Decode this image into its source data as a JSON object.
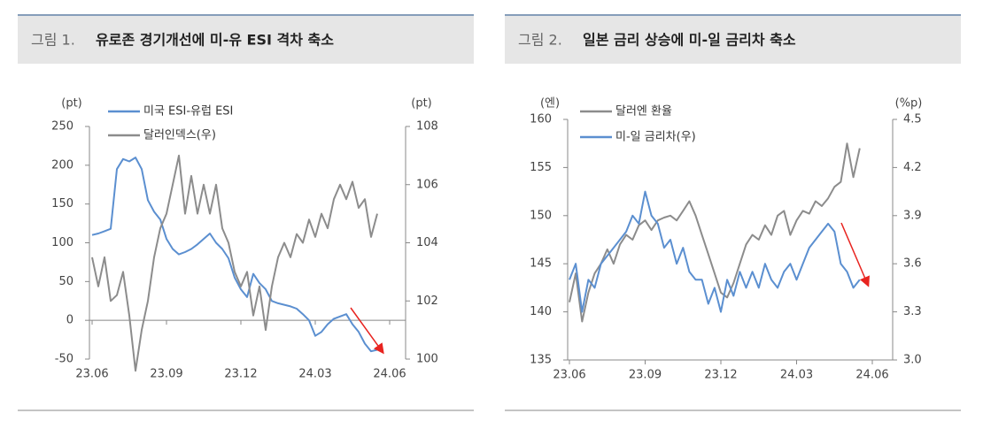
{
  "chart_data": [
    {
      "type": "line",
      "figure_label": "그림 1.",
      "title": "유로존 경기개선에 미-유 ESI 격차 축소",
      "y_unit": "(pt)",
      "y2_unit": "(pt)",
      "categories": [
        "23.06",
        null,
        null,
        null,
        null,
        null,
        null,
        null,
        null,
        null,
        null,
        null,
        "23.09",
        null,
        null,
        null,
        null,
        null,
        null,
        null,
        null,
        null,
        null,
        null,
        "23.12",
        null,
        null,
        null,
        null,
        null,
        null,
        null,
        null,
        null,
        null,
        null,
        "24.03",
        null,
        null,
        null,
        null,
        null,
        null,
        null,
        null,
        null,
        null,
        null,
        "24.06",
        null,
        null,
        null,
        null
      ],
      "ylim": [
        -50,
        250
      ],
      "yticks": [
        -50,
        0,
        50,
        100,
        150,
        200,
        250
      ],
      "y2lim": [
        100,
        108
      ],
      "y2ticks": [
        100,
        102,
        104,
        106,
        108
      ],
      "series": [
        {
          "name": "미국 ESI-유럽 ESI",
          "color": "#5b8fd0",
          "values": [
            110,
            112,
            115,
            118,
            195,
            208,
            205,
            210,
            195,
            155,
            140,
            130,
            105,
            92,
            85,
            88,
            92,
            98,
            105,
            112,
            100,
            92,
            80,
            55,
            40,
            30,
            60,
            48,
            40,
            25,
            22,
            20,
            18,
            15,
            8,
            0,
            -20,
            -15,
            -5,
            2,
            5,
            8,
            -5,
            -15,
            -30,
            -40,
            -38,
            null,
            null,
            null,
            null,
            null,
            null
          ]
        },
        {
          "name": "달러인덱스(우)",
          "color": "#8c8c8c",
          "axis": "y2",
          "values": [
            103.5,
            102.5,
            103.5,
            102,
            102.2,
            103,
            101.5,
            99.6,
            101,
            102,
            103.5,
            104.5,
            105,
            106,
            107,
            105,
            106.3,
            105,
            106,
            105,
            106,
            104.5,
            104,
            103,
            102.5,
            103,
            101.5,
            102.5,
            101,
            102.5,
            103.5,
            104,
            103.5,
            104.3,
            104,
            104.8,
            104.2,
            105,
            104.5,
            105.5,
            106,
            105.5,
            106.1,
            105.2,
            105.5,
            104.2,
            105,
            null,
            null,
            null,
            null,
            null,
            null
          ]
        }
      ]
    },
    {
      "type": "line",
      "figure_label": "그림 2.",
      "title": "일본 금리 상승에 미-일 금리차 축소",
      "y_unit": "(엔)",
      "y2_unit": "(%p)",
      "categories": [
        "23.06",
        null,
        null,
        null,
        null,
        null,
        null,
        null,
        null,
        null,
        null,
        null,
        "23.09",
        null,
        null,
        null,
        null,
        null,
        null,
        null,
        null,
        null,
        null,
        null,
        "23.12",
        null,
        null,
        null,
        null,
        null,
        null,
        null,
        null,
        null,
        null,
        null,
        "24.03",
        null,
        null,
        null,
        null,
        null,
        null,
        null,
        null,
        null,
        null,
        null,
        "24.06",
        null,
        null,
        null
      ],
      "ylim": [
        135,
        160
      ],
      "yticks": [
        135,
        140,
        145,
        150,
        155,
        160
      ],
      "y2lim": [
        3,
        4.5
      ],
      "y2ticks": [
        {
          "value": 3,
          "label": "3.0"
        },
        3.3,
        3.6,
        3.9,
        4.2,
        4.5
      ],
      "series": [
        {
          "name": "달러엔 환율",
          "color": "#8c8c8c",
          "values": [
            141,
            144,
            139,
            142,
            144,
            145,
            146.5,
            145,
            147,
            148,
            147.5,
            149,
            149.5,
            148.5,
            149.5,
            149.8,
            150,
            149.5,
            150.5,
            151.5,
            150,
            148,
            146,
            144,
            142,
            141.5,
            143,
            145,
            147,
            148,
            147.5,
            149,
            148,
            150,
            150.5,
            148,
            149.5,
            150.5,
            150.2,
            151.5,
            151,
            151.8,
            153,
            153.5,
            157.5,
            154,
            157,
            null,
            null,
            null,
            null,
            null
          ]
        },
        {
          "name": "미-일 금리차(우)",
          "color": "#5b8fd0",
          "axis": "y2",
          "values": [
            3.5,
            3.6,
            3.3,
            3.5,
            3.45,
            3.6,
            3.65,
            3.7,
            3.75,
            3.8,
            3.9,
            3.85,
            4.05,
            3.9,
            3.85,
            3.7,
            3.75,
            3.6,
            3.7,
            3.55,
            3.5,
            3.5,
            3.35,
            3.45,
            3.3,
            3.5,
            3.4,
            3.55,
            3.45,
            3.55,
            3.45,
            3.6,
            3.5,
            3.45,
            3.55,
            3.6,
            3.5,
            3.6,
            3.7,
            3.75,
            3.8,
            3.85,
            3.8,
            3.6,
            3.55,
            3.45,
            3.5,
            null,
            null,
            null,
            null,
            null
          ]
        }
      ]
    }
  ]
}
